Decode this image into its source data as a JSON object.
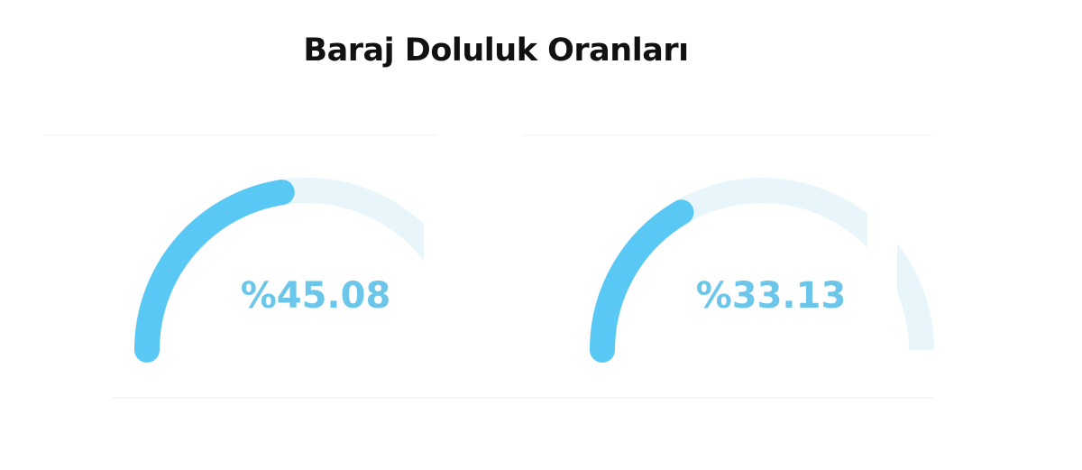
{
  "chart_data": {
    "type": "gauge",
    "title": "Baraj Doluluk Oranları",
    "range": [
      0,
      100
    ],
    "gauges": [
      {
        "value": 45.08,
        "label": "%45.08"
      },
      {
        "value": 33.13,
        "label": "%33.13"
      }
    ],
    "colors": {
      "fill": "#5ac8f5",
      "track": "#e8f6fc",
      "text": "#6cc6ea"
    }
  }
}
